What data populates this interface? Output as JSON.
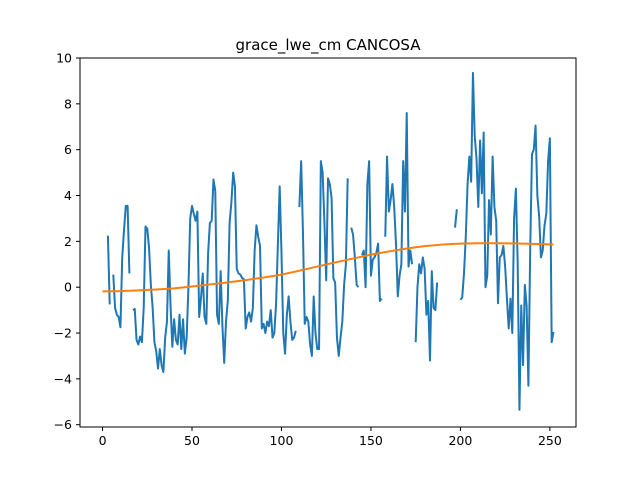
{
  "chart_data": {
    "type": "line",
    "title": "grace_lwe_cm CANCOSA",
    "xlabel": "",
    "ylabel": "",
    "xlim": [
      -12.6,
      264.6
    ],
    "ylim": [
      -6.1,
      10.0
    ],
    "xticks": [
      0,
      50,
      100,
      150,
      200,
      250
    ],
    "yticks": [
      -6,
      -4,
      -2,
      0,
      2,
      4,
      6,
      8,
      10
    ],
    "grid": false,
    "colors": {
      "series_0": "#1f77b4",
      "series_1": "#ff7f0e"
    },
    "series": [
      {
        "values": [
          [
            3,
            2.25
          ],
          [
            4,
            -0.75
          ],
          [
            5,
            null
          ],
          [
            6,
            0.55
          ],
          [
            7,
            -0.9
          ],
          [
            8,
            -1.2
          ],
          [
            9,
            -1.3
          ],
          [
            10,
            -1.75
          ],
          [
            11,
            1.3
          ],
          [
            12,
            2.5
          ],
          [
            13,
            3.55
          ],
          [
            14,
            3.55
          ],
          [
            15,
            0.6
          ],
          [
            16,
            null
          ],
          [
            17,
            -1.0
          ],
          [
            18,
            -0.95
          ],
          [
            19,
            -2.3
          ],
          [
            20,
            -2.5
          ],
          [
            21,
            -2.15
          ],
          [
            22,
            -2.4
          ],
          [
            23,
            -0.9
          ],
          [
            24,
            2.65
          ],
          [
            25,
            2.55
          ],
          [
            26,
            1.7
          ],
          [
            27,
            0.1
          ],
          [
            28,
            -0.9
          ],
          [
            29,
            -2.4
          ],
          [
            30,
            -2.8
          ],
          [
            31,
            -3.55
          ],
          [
            32,
            -2.7
          ],
          [
            33,
            -3.4
          ],
          [
            34,
            -3.7
          ],
          [
            35,
            -2.2
          ],
          [
            36,
            -1.5
          ],
          [
            37,
            1.6
          ],
          [
            38,
            -0.8
          ],
          [
            39,
            -2.6
          ],
          [
            40,
            -1.4
          ],
          [
            41,
            -2.3
          ],
          [
            42,
            -2.5
          ],
          [
            43,
            -1.2
          ],
          [
            44,
            -2.7
          ],
          [
            45,
            -1.4
          ],
          [
            46,
            -2.9
          ],
          [
            47,
            -2.2
          ],
          [
            48,
            0.0
          ],
          [
            49,
            3.0
          ],
          [
            50,
            3.55
          ],
          [
            51,
            3.2
          ],
          [
            52,
            2.9
          ],
          [
            53,
            3.3
          ],
          [
            54,
            -1.3
          ],
          [
            55,
            -0.5
          ],
          [
            56,
            0.6
          ],
          [
            57,
            -1.3
          ],
          [
            58,
            -1.6
          ],
          [
            59,
            1.5
          ],
          [
            60,
            2.8
          ],
          [
            61,
            2.9
          ],
          [
            62,
            4.7
          ],
          [
            63,
            4.2
          ],
          [
            64,
            -1.2
          ],
          [
            65,
            -1.6
          ],
          [
            66,
            0.7
          ],
          [
            67,
            -1.7
          ],
          [
            68,
            -3.3
          ],
          [
            69,
            -1.5
          ],
          [
            70,
            -0.6
          ],
          [
            71,
            2.8
          ],
          [
            72,
            3.7
          ],
          [
            73,
            5.0
          ],
          [
            74,
            4.4
          ],
          [
            75,
            0.8
          ],
          [
            76,
            0.6
          ],
          [
            77,
            0.55
          ],
          [
            78,
            0.4
          ],
          [
            79,
            0.35
          ],
          [
            80,
            -1.8
          ],
          [
            81,
            -1.3
          ],
          [
            82,
            -1.1
          ],
          [
            83,
            -1.5
          ],
          [
            84,
            -0.9
          ],
          [
            85,
            1.6
          ],
          [
            86,
            2.7
          ],
          [
            87,
            2.2
          ],
          [
            88,
            1.8
          ],
          [
            89,
            -1.8
          ],
          [
            90,
            -1.6
          ],
          [
            91,
            -2.0
          ],
          [
            92,
            -1.5
          ],
          [
            93,
            -1.7
          ],
          [
            94,
            -1.0
          ],
          [
            95,
            -2.2
          ],
          [
            96,
            -2.0
          ],
          [
            97,
            -0.7
          ],
          [
            98,
            1.9
          ],
          [
            99,
            4.4
          ],
          [
            100,
            1.5
          ],
          [
            101,
            -2.0
          ],
          [
            102,
            -2.9
          ],
          [
            103,
            -1.2
          ],
          [
            104,
            -0.4
          ],
          [
            105,
            -1.5
          ],
          [
            106,
            -2.3
          ],
          [
            107,
            -2.2
          ],
          [
            108,
            -1.9
          ],
          [
            109,
            null
          ],
          [
            110,
            3.5
          ],
          [
            111,
            5.5
          ],
          [
            112,
            2.4
          ],
          [
            113,
            -1.6
          ],
          [
            114,
            -1.3
          ],
          [
            115,
            -1.5
          ],
          [
            116,
            -2.5
          ],
          [
            117,
            -3.0
          ],
          [
            118,
            -0.4
          ],
          [
            119,
            -2.0
          ],
          [
            120,
            -2.7
          ],
          [
            121,
            -2.7
          ],
          [
            122,
            5.5
          ],
          [
            123,
            5.0
          ],
          [
            124,
            2.8
          ],
          [
            125,
            0.3
          ],
          [
            126,
            4.75
          ],
          [
            127,
            4.5
          ],
          [
            128,
            3.9
          ],
          [
            129,
            0.4
          ],
          [
            130,
            0.2
          ],
          [
            131,
            -2.2
          ],
          [
            132,
            -3.0
          ],
          [
            133,
            -2.2
          ],
          [
            134,
            -1.5
          ],
          [
            135,
            0.1
          ],
          [
            136,
            1.0
          ],
          [
            137,
            4.75
          ],
          [
            138,
            null
          ],
          [
            139,
            2.6
          ],
          [
            140,
            2.3
          ],
          [
            141,
            1.3
          ],
          [
            142,
            0.1
          ],
          [
            143,
            0.0
          ],
          [
            144,
            null
          ],
          [
            145,
            1.4
          ],
          [
            146,
            1.6
          ],
          [
            147,
            0.0
          ],
          [
            148,
            4.5
          ],
          [
            149,
            5.5
          ],
          [
            150,
            0.5
          ],
          [
            151,
            1.2
          ],
          [
            152,
            1.3
          ],
          [
            153,
            1.5
          ],
          [
            154,
            1.9
          ],
          [
            155,
            -0.6
          ],
          [
            156,
            -0.5
          ],
          [
            157,
            null
          ],
          [
            158,
            2.2
          ],
          [
            159,
            5.7
          ],
          [
            160,
            3.3
          ],
          [
            161,
            3.8
          ],
          [
            162,
            4.5
          ],
          [
            163,
            3.5
          ],
          [
            164,
            1.9
          ],
          [
            165,
            -0.4
          ],
          [
            166,
            0.5
          ],
          [
            167,
            1.0
          ],
          [
            168,
            5.5
          ],
          [
            169,
            3.3
          ],
          [
            170,
            7.6
          ],
          [
            171,
            0.9
          ],
          [
            172,
            1.6
          ],
          [
            173,
            1.0
          ],
          [
            174,
            null
          ],
          [
            175,
            -2.4
          ],
          [
            176,
            0.0
          ],
          [
            177,
            1.0
          ],
          [
            178,
            0.6
          ],
          [
            179,
            1.3
          ],
          [
            180,
            0.8
          ],
          [
            181,
            -1.2
          ],
          [
            182,
            -0.6
          ],
          [
            183,
            -3.2
          ],
          [
            184,
            0.7
          ],
          [
            185,
            -0.9
          ],
          [
            186,
            -1.0
          ],
          [
            187,
            0.2
          ],
          [
            188,
            null
          ],
          [
            197,
            2.6
          ],
          [
            198,
            3.4
          ],
          [
            199,
            null
          ],
          [
            200,
            -0.55
          ],
          [
            201,
            -0.45
          ],
          [
            202,
            0.6
          ],
          [
            203,
            2.2
          ],
          [
            204,
            4.5
          ],
          [
            205,
            5.7
          ],
          [
            206,
            4.6
          ],
          [
            207,
            9.35
          ],
          [
            208,
            6.6
          ],
          [
            209,
            5.6
          ],
          [
            210,
            3.5
          ],
          [
            211,
            6.4
          ],
          [
            212,
            4.1
          ],
          [
            213,
            6.75
          ],
          [
            214,
            0.0
          ],
          [
            215,
            0.5
          ],
          [
            216,
            3.8
          ],
          [
            217,
            2.3
          ],
          [
            218,
            5.7
          ],
          [
            219,
            3.5
          ],
          [
            220,
            2.9
          ],
          [
            221,
            -0.7
          ],
          [
            222,
            1.3
          ],
          [
            223,
            1.4
          ],
          [
            224,
            1.8
          ],
          [
            225,
            0.9
          ],
          [
            226,
            -0.5
          ],
          [
            227,
            -1.8
          ],
          [
            228,
            -0.5
          ],
          [
            229,
            -2.0
          ],
          [
            230,
            3.0
          ],
          [
            231,
            4.3
          ],
          [
            232,
            1.1
          ],
          [
            233,
            -5.35
          ],
          [
            234,
            -0.8
          ],
          [
            235,
            -3.4
          ],
          [
            236,
            0.1
          ],
          [
            237,
            -0.8
          ],
          [
            238,
            -4.3
          ],
          [
            239,
            1.6
          ],
          [
            240,
            5.8
          ],
          [
            241,
            6.0
          ],
          [
            242,
            7.05
          ],
          [
            243,
            4.0
          ],
          [
            244,
            3.1
          ],
          [
            245,
            1.3
          ],
          [
            246,
            1.6
          ],
          [
            247,
            2.7
          ],
          [
            248,
            3.2
          ],
          [
            249,
            5.5
          ],
          [
            250,
            6.5
          ],
          [
            251,
            -2.4
          ],
          [
            252,
            -1.95
          ]
        ]
      },
      {
        "values": [
          [
            0,
            -0.18
          ],
          [
            10,
            -0.17
          ],
          [
            20,
            -0.14
          ],
          [
            30,
            -0.1
          ],
          [
            40,
            -0.05
          ],
          [
            50,
            0.03
          ],
          [
            60,
            0.12
          ],
          [
            70,
            0.21
          ],
          [
            80,
            0.31
          ],
          [
            90,
            0.42
          ],
          [
            100,
            0.55
          ],
          [
            110,
            0.72
          ],
          [
            120,
            0.9
          ],
          [
            130,
            1.08
          ],
          [
            140,
            1.25
          ],
          [
            150,
            1.42
          ],
          [
            160,
            1.56
          ],
          [
            170,
            1.69
          ],
          [
            180,
            1.79
          ],
          [
            190,
            1.86
          ],
          [
            200,
            1.9
          ],
          [
            210,
            1.92
          ],
          [
            220,
            1.92
          ],
          [
            230,
            1.91
          ],
          [
            240,
            1.89
          ],
          [
            250,
            1.87
          ],
          [
            252,
            1.87
          ]
        ]
      }
    ]
  }
}
